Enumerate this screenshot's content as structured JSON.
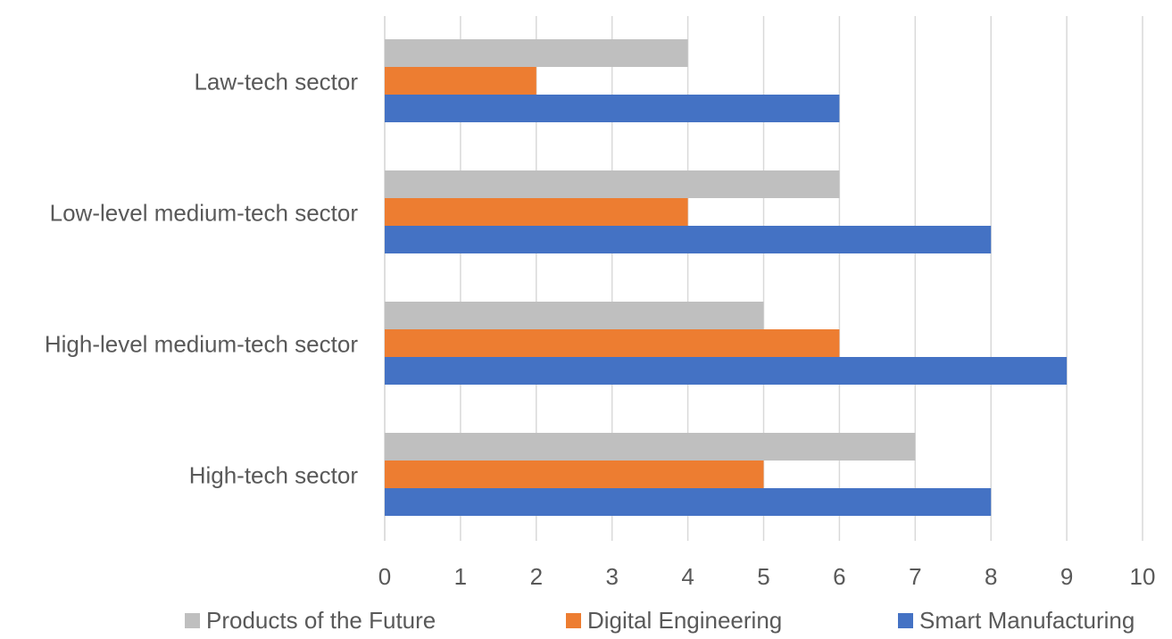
{
  "chart_data": {
    "type": "bar",
    "orientation": "horizontal",
    "categories": [
      "Law-tech sector",
      "Low-level medium-tech sector",
      "High-level medium-tech sector",
      "High-tech sector"
    ],
    "series": [
      {
        "name": "Products of the Future",
        "color": "#bfbfbf",
        "values": [
          4,
          6,
          5,
          7
        ]
      },
      {
        "name": "Digital Engineering",
        "color": "#ed7d31",
        "values": [
          2,
          4,
          6,
          5
        ]
      },
      {
        "name": "Smart Manufacturing",
        "color": "#4472c4",
        "values": [
          6,
          8,
          9,
          8
        ]
      }
    ],
    "xlim": [
      0,
      10
    ],
    "ticks": [
      "0",
      "1",
      "2",
      "3",
      "4",
      "5",
      "6",
      "7",
      "8",
      "9",
      "10"
    ],
    "grid": true,
    "legend_position": "bottom"
  }
}
